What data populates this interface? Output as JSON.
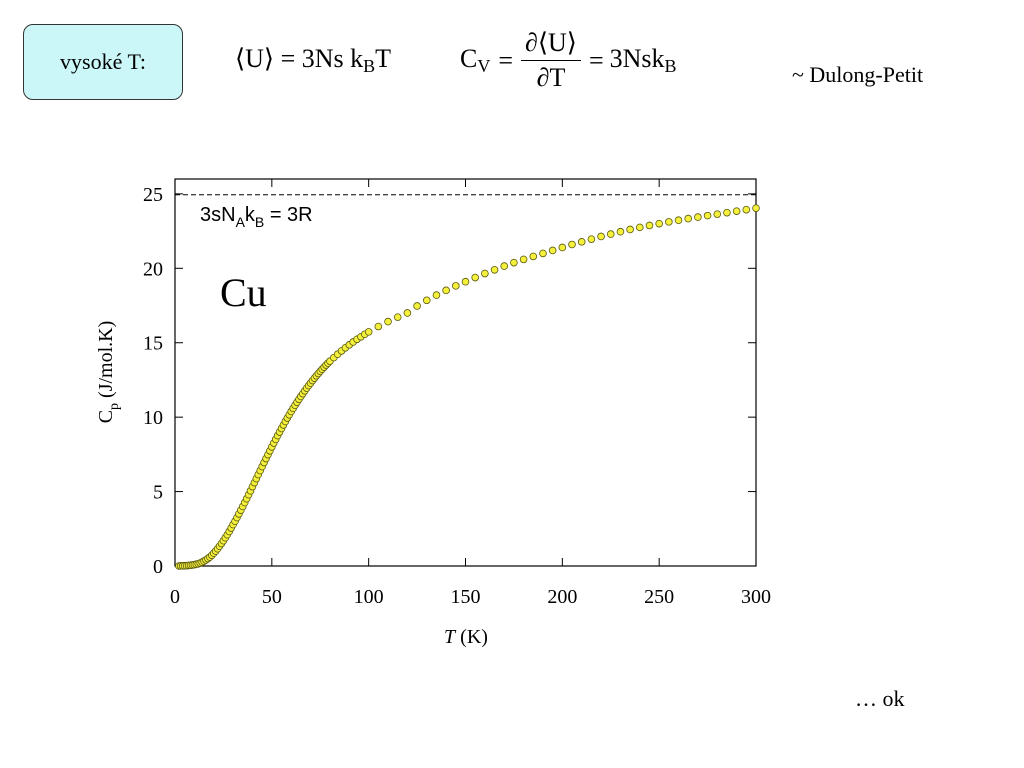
{
  "header": {
    "box_label": "vysoké T:",
    "eq1": {
      "u_open": "⟨U⟩",
      "equals": "=",
      "rhs_main": "3Ns k",
      "rhs_sub": "B",
      "rhs_tail": "T"
    },
    "eq2": {
      "lhs_main": "C",
      "lhs_sub": "V",
      "equals1": "=",
      "numerator": "∂⟨U⟩",
      "denominator": "∂T",
      "equals2": "=",
      "rhs_main": "3Nsk",
      "rhs_sub": "B"
    },
    "dulong_petit": "~ Dulong-Petit"
  },
  "footer": {
    "ok_text": "… ok"
  },
  "colors": {
    "marker_fill": "#f5f03c",
    "marker_stroke": "#5a5a10",
    "axis": "#000000"
  },
  "chart_data": {
    "type": "scatter",
    "title": "",
    "xlabel": "T (K)",
    "xlabel_var": "T",
    "xlabel_unit": " (K)",
    "ylabel": "Cp (J/mol.K)",
    "ylabel_var": "C",
    "ylabel_sub": "p",
    "ylabel_unit": " (J/mol.K)",
    "xlim": [
      0,
      300
    ],
    "ylim": [
      0,
      26
    ],
    "xticks": [
      0,
      50,
      100,
      150,
      200,
      250,
      300
    ],
    "yticks": [
      0,
      5,
      10,
      15,
      20,
      25
    ],
    "grid": false,
    "reference_line": {
      "y": 24.94,
      "style": "dashed",
      "label_main": "3sN",
      "label_sub1": "A",
      "label_mid": "k",
      "label_sub2": "B",
      "label_tail": " = 3R"
    },
    "annotation": "Cu",
    "series": [
      {
        "x": [
          2,
          3,
          4,
          5,
          6,
          7,
          8,
          9,
          10,
          11,
          12,
          13,
          14,
          15,
          16,
          17,
          18,
          19,
          20,
          21,
          22,
          23,
          24,
          25,
          26,
          27,
          28,
          29,
          30,
          31,
          32,
          33,
          34,
          35,
          36,
          37,
          38,
          39,
          40,
          41,
          42,
          43,
          44,
          45,
          46,
          47,
          48,
          49,
          50,
          51,
          52,
          53,
          54,
          55,
          56,
          57,
          58,
          59,
          60,
          61,
          62,
          63,
          64,
          65,
          66,
          67,
          68,
          69,
          70,
          71,
          72,
          73,
          74,
          75,
          76,
          77,
          78,
          79,
          80,
          82,
          84,
          86,
          88,
          90,
          92,
          94,
          96,
          98,
          100,
          105,
          110,
          115,
          120,
          125,
          130,
          135,
          140,
          145,
          150,
          155,
          160,
          165,
          170,
          175,
          180,
          185,
          190,
          195,
          200,
          205,
          210,
          215,
          220,
          225,
          230,
          235,
          240,
          245,
          250,
          255,
          260,
          265,
          270,
          275,
          280,
          285,
          290,
          295,
          300
        ],
        "y": [
          0.0,
          0.01,
          0.01,
          0.02,
          0.02,
          0.04,
          0.05,
          0.07,
          0.09,
          0.12,
          0.15,
          0.2,
          0.26,
          0.33,
          0.41,
          0.5,
          0.6,
          0.72,
          0.86,
          1.0,
          1.16,
          1.33,
          1.51,
          1.7,
          1.9,
          2.1,
          2.32,
          2.55,
          2.78,
          3.01,
          3.25,
          3.5,
          3.75,
          4.0,
          4.26,
          4.52,
          4.79,
          5.05,
          5.33,
          5.6,
          5.87,
          6.14,
          6.41,
          6.68,
          6.95,
          7.22,
          7.48,
          7.74,
          8.0,
          8.26,
          8.51,
          8.76,
          9.0,
          9.24,
          9.48,
          9.71,
          9.94,
          10.16,
          10.38,
          10.59,
          10.8,
          11.0,
          11.2,
          11.39,
          11.58,
          11.77,
          11.95,
          12.12,
          12.29,
          12.46,
          12.62,
          12.78,
          12.93,
          13.08,
          13.22,
          13.36,
          13.5,
          13.63,
          13.76,
          14.0,
          14.23,
          14.45,
          14.66,
          14.86,
          15.05,
          15.23,
          15.4,
          15.57,
          15.73,
          16.09,
          16.42,
          16.72,
          17.0,
          17.47,
          17.85,
          18.2,
          18.52,
          18.82,
          19.1,
          19.38,
          19.65,
          19.9,
          20.15,
          20.38,
          20.6,
          20.8,
          21.0,
          21.2,
          21.4,
          21.6,
          21.78,
          21.96,
          22.14,
          22.3,
          22.46,
          22.61,
          22.75,
          22.88,
          23.0,
          23.12,
          23.23,
          23.34,
          23.44,
          23.54,
          23.64,
          23.74,
          23.84,
          23.94,
          24.04
        ]
      }
    ]
  }
}
